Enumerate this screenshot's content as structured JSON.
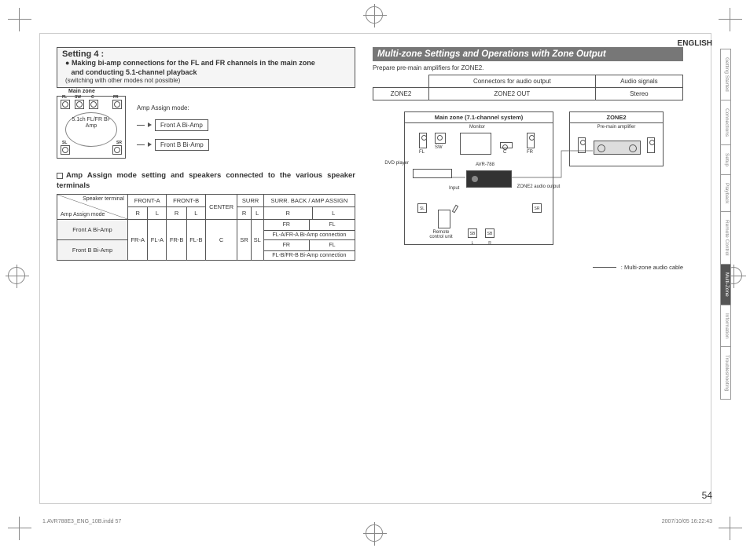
{
  "lang": "ENGLISH",
  "page_number": "54",
  "footer": {
    "file": "1.AVR788E3_ENG_10B.indd   57",
    "timestamp": "2007/10/05   16:22:43"
  },
  "setting4": {
    "title": "Setting 4 :",
    "subtitle_l1": "Making bi-amp connections for the FL and FR channels in the main zone",
    "subtitle_l2": "and conducting 5.1-channel playback",
    "note": "(switching with other modes not possible)"
  },
  "mainzone_small": {
    "label": "Main zone",
    "spk_labels": [
      "FL",
      "SW",
      "C",
      "FR",
      "SL",
      "SR"
    ],
    "center_text": "5.1ch\nFL/FR\nBi-Amp",
    "amp_mode_lbl": "Amp Assign mode:",
    "opt_a": "Front A Bi-Amp",
    "opt_b": "Front B Bi-Amp"
  },
  "amp_heading": "Amp Assign mode setting and speakers connected to the various speaker terminals",
  "table1": {
    "diag_top": "Speaker terminal",
    "diag_bottom": "Amp Assign mode",
    "h_frontA": "FRONT-A",
    "h_frontB": "FRONT-B",
    "h_center": "CENTER",
    "h_surr": "SURR",
    "h_sba": "SURR. BACK / AMP ASSIGN",
    "h_R": "R",
    "h_L": "L",
    "rows": [
      {
        "label": "Front A Bi-Amp",
        "sba_top_l": "FR",
        "sba_top_r": "FL",
        "sba_bot": "FL-A/FR-A Bi-Amp connection"
      },
      {
        "label": "Front B Bi-Amp",
        "sba_top_l": "FR",
        "sba_top_r": "FL",
        "sba_bot": "FL-B/FR-B Bi-Amp connection"
      }
    ],
    "mid": {
      "fra": "FR-A",
      "fla": "FL-A",
      "frb": "FR-B",
      "flb": "FL-B",
      "c": "C",
      "sr": "SR",
      "sl": "SL"
    }
  },
  "mzso": {
    "title": "Multi-zone Settings and Operations with Zone Output",
    "prep": "Prepare pre-main amplifiers for ZONE2.",
    "t2": {
      "h1": "Connectors for audio output",
      "h2": "Audio signals",
      "r1a": "ZONE2",
      "r1b": "ZONE2 OUT",
      "r1c": "Stereo"
    },
    "diagram": {
      "main_title": "Main zone (7.1-channel system)",
      "zone2_title": "ZONE2",
      "monitor": "Monitor",
      "fl": "FL",
      "sw": "SW",
      "fr": "FR",
      "sl": "SL",
      "sr": "SR",
      "sbl": "SB L",
      "sbr": "SB R",
      "dvd": "DVD player",
      "avr": "AVR-788",
      "input": "Input",
      "z2out": "ZONE2 audio output",
      "remote": "Remote control unit",
      "preamp": "Pre-main amplifier",
      "legend": ": Multi-zone audio cable"
    }
  },
  "tabs": [
    "Getting Started",
    "Connections",
    "Setup",
    "Playback",
    "Remote Control",
    "Multi-Zone",
    "Information",
    "Troubleshooting"
  ],
  "active_tab_index": 5,
  "colors": {
    "text": "#333333",
    "banner_bg": "#777777",
    "banner_fg": "#ffffff",
    "tab_active_bg": "#555555",
    "border": "#555555"
  }
}
